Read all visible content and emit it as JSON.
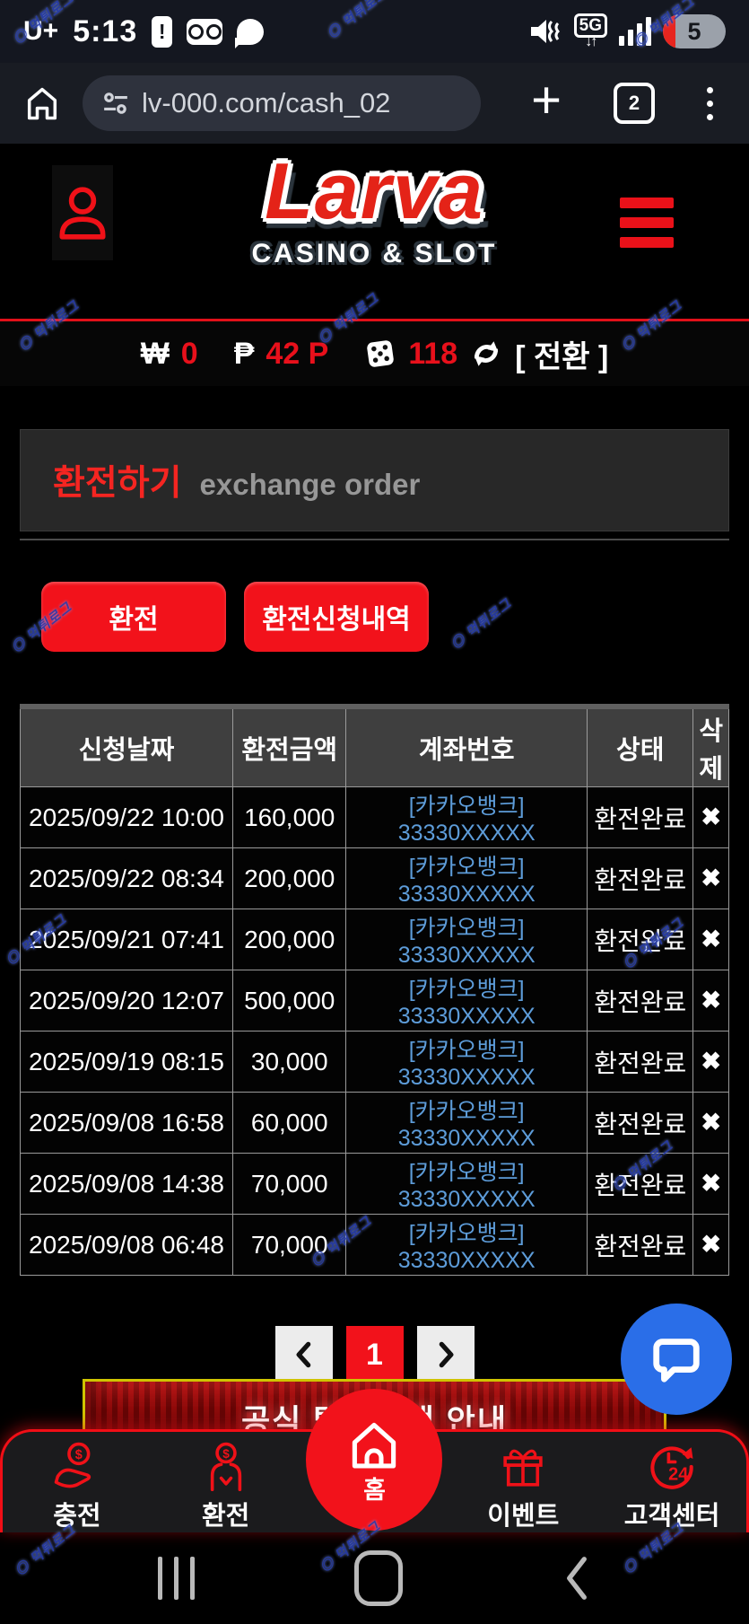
{
  "status_bar": {
    "carrier": "U+",
    "time": "5:13",
    "network": "5G",
    "battery_level": "5"
  },
  "browser": {
    "url": "lv-000.com/cash_02",
    "tab_count": "2"
  },
  "site_header": {
    "logo": "Larva",
    "tagline": "CASINO & SLOT"
  },
  "balance_bar": {
    "won_symbol": "₩",
    "won_value": "0",
    "peso_symbol": "₱",
    "peso_value": "42 P",
    "ticket_value": "118",
    "convert_label": "[ 전환 ]"
  },
  "page": {
    "title_ko": "환전하기",
    "title_en": "exchange order"
  },
  "actions": {
    "exchange_label": "환전",
    "history_label": "환전신청내역"
  },
  "table": {
    "headers": [
      "신청날짜",
      "환전금액",
      "계좌번호",
      "상태",
      "삭제"
    ],
    "remove_glyph": "✖",
    "rows": [
      {
        "date": "2025/09/22 10:00",
        "amount": "160,000",
        "account": "[카카오뱅크] 33330XXXXX",
        "status": "환전완료"
      },
      {
        "date": "2025/09/22 08:34",
        "amount": "200,000",
        "account": "[카카오뱅크] 33330XXXXX",
        "status": "환전완료"
      },
      {
        "date": "2025/09/21 07:41",
        "amount": "200,000",
        "account": "[카카오뱅크] 33330XXXXX",
        "status": "환전완료"
      },
      {
        "date": "2025/09/20 12:07",
        "amount": "500,000",
        "account": "[카카오뱅크] 33330XXXXX",
        "status": "환전완료"
      },
      {
        "date": "2025/09/19 08:15",
        "amount": "30,000",
        "account": "[카카오뱅크] 33330XXXXX",
        "status": "환전완료"
      },
      {
        "date": "2025/09/08 16:58",
        "amount": "60,000",
        "account": "[카카오뱅크] 33330XXXXX",
        "status": "환전완료"
      },
      {
        "date": "2025/09/08 14:38",
        "amount": "70,000",
        "account": "[카카오뱅크] 33330XXXXX",
        "status": "환전완료"
      },
      {
        "date": "2025/09/08 06:48",
        "amount": "70,000",
        "account": "[카카오뱅크] 33330XXXXX",
        "status": "환전완료"
      }
    ]
  },
  "pagination": {
    "current": "1"
  },
  "banner": {
    "text": "공식 텔레그램 안내"
  },
  "bottom_nav": {
    "items": [
      {
        "label": "충전"
      },
      {
        "label": "환전"
      },
      {
        "label": "홈"
      },
      {
        "label": "이벤트"
      },
      {
        "label": "고객센터"
      }
    ]
  },
  "watermark": {
    "text": "먹튀로그"
  },
  "colors": {
    "accent_red": "#f2121b",
    "link_blue": "#5d9cd9",
    "chat_blue": "#2a6ee8",
    "banner_border_yellow": "#cfc400"
  }
}
